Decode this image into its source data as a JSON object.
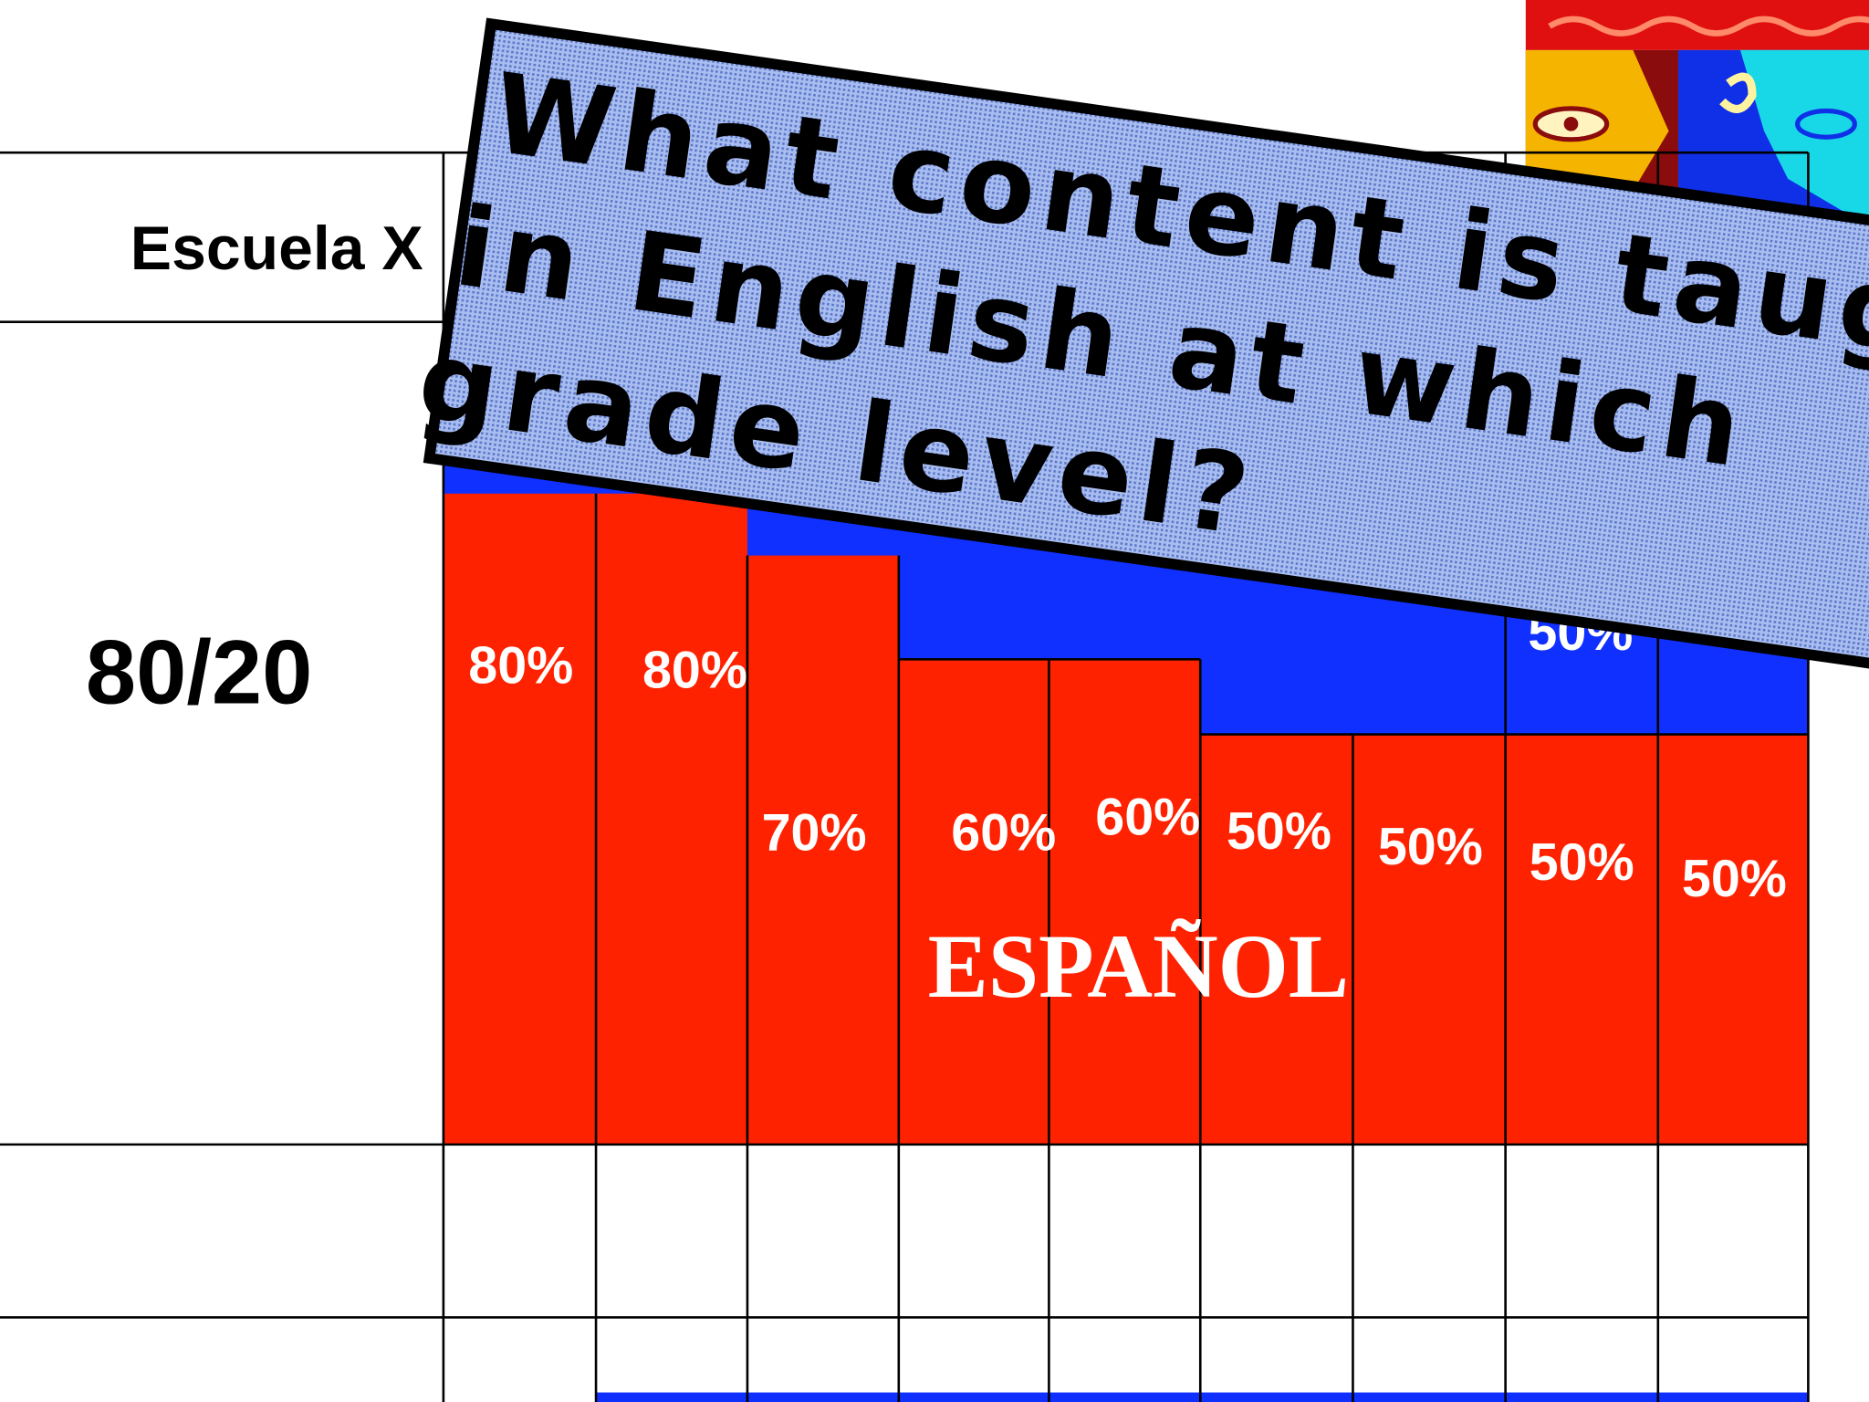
{
  "table": {
    "school": "Escuela X",
    "model": "80/20",
    "language": "ESPAÑOL",
    "percent_labels": [
      "80%",
      "80%",
      "70%",
      "60%",
      "60%",
      "50%",
      "50%",
      "50%",
      "50%"
    ],
    "hidden_label": "50%"
  },
  "banner": {
    "lines": [
      "What content is taught",
      "in English at which",
      "grade level?"
    ]
  }
}
